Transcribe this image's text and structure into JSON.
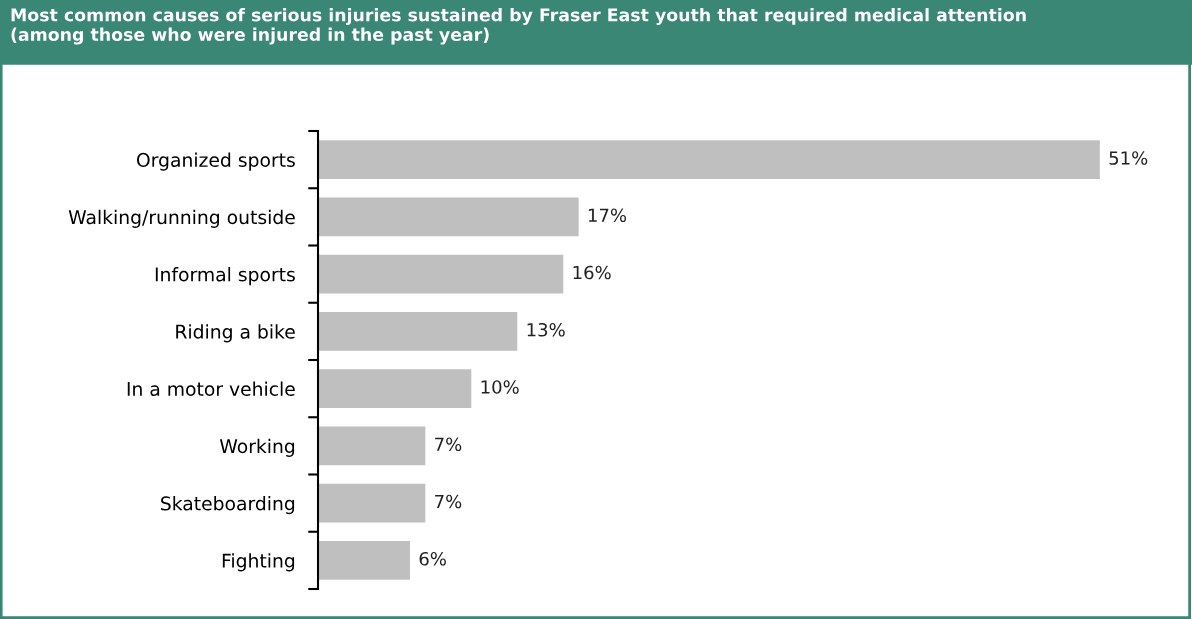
{
  "chart_data": {
    "type": "bar",
    "orientation": "horizontal",
    "title": "Most common causes of serious injuries sustained by Fraser East youth that required medical attention\n(among those who were injured in the past year)",
    "categories": [
      "Organized sports",
      "Walking/running outside",
      "Informal sports",
      "Riding a bike",
      "In a motor vehicle",
      "Working",
      "Skateboarding",
      "Fighting"
    ],
    "values": [
      51,
      17,
      16,
      13,
      10,
      7,
      7,
      6
    ],
    "value_labels": [
      "51%",
      "17%",
      "16%",
      "13%",
      "10%",
      "7%",
      "7%",
      "6%"
    ],
    "color": "#bfbfbf"
  }
}
